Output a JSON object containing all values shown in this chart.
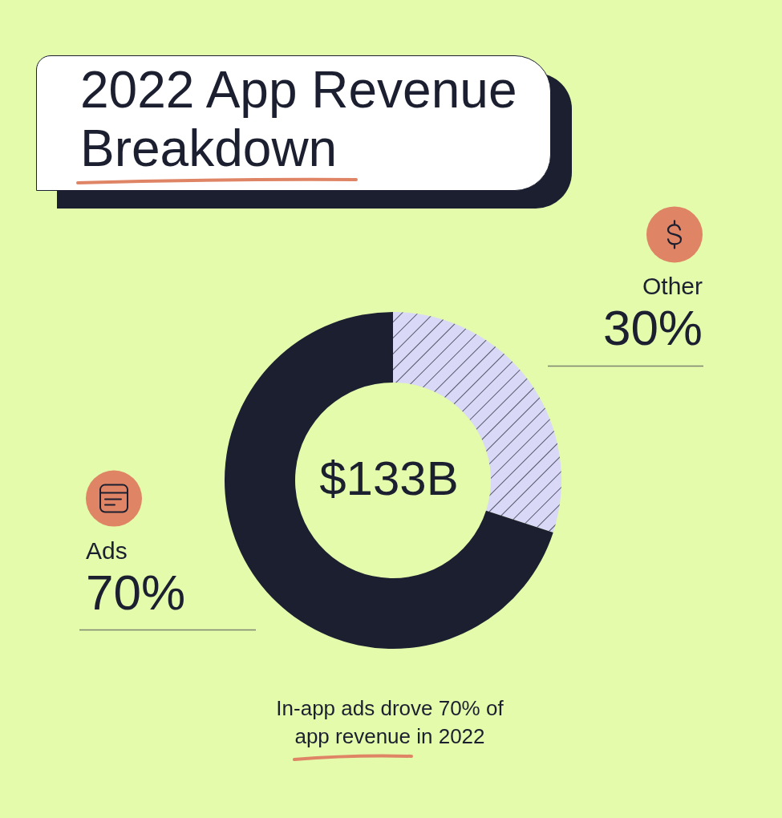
{
  "chart_data": {
    "type": "donut",
    "title": "2022 App Revenue Breakdown",
    "categories": [
      "Other",
      "Ads"
    ],
    "values": [
      30,
      70
    ],
    "colors": [
      "#d9d8f6",
      "#1b1f30"
    ],
    "value_labels": [
      "30%",
      "70%"
    ],
    "annotations": [
      "$133B",
      "In-app ads drove 70% of app revenue in 2022"
    ]
  }
}
